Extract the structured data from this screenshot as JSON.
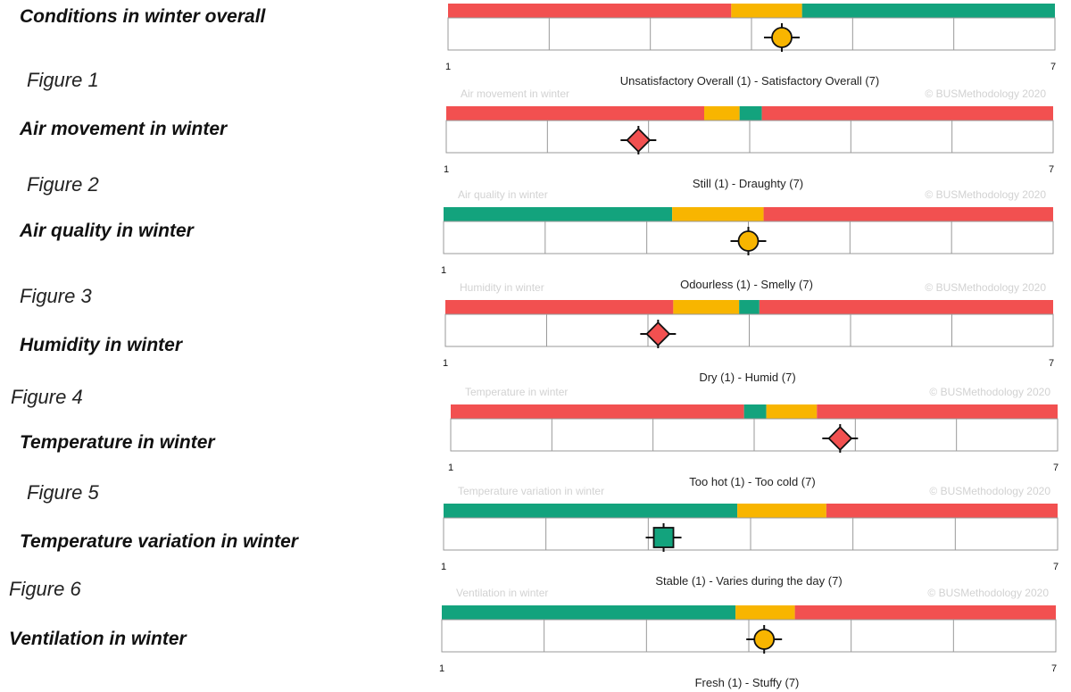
{
  "colors": {
    "red": "#F25050",
    "amber": "#F8B500",
    "green": "#13A37D",
    "frame": "#999999"
  },
  "figures": [
    {
      "label": "Figure 1"
    },
    {
      "label": "Figure 2"
    },
    {
      "label": "Figure 3"
    },
    {
      "label": "Figure 4"
    },
    {
      "label": "Figure 5"
    },
    {
      "label": "Figure 6"
    }
  ],
  "chart_data": [
    {
      "type": "bar",
      "row_title": "Conditions in winter overall",
      "header_left": "",
      "header_right": "",
      "axis_caption": "Unsatisfactory Overall (1) - Satisfactory Overall (7)",
      "xlim": [
        1,
        7
      ],
      "tick_labels": [
        "1",
        "7"
      ],
      "bands": [
        {
          "from": 1,
          "to": 3.8,
          "color": "red"
        },
        {
          "from": 3.8,
          "to": 4.5,
          "color": "amber"
        },
        {
          "from": 4.5,
          "to": 7,
          "color": "green"
        }
      ],
      "marker": {
        "value": 4.3,
        "shape": "circle",
        "color": "amber"
      }
    },
    {
      "type": "bar",
      "row_title": "Air movement in winter",
      "header_left": "Air movement in winter",
      "header_right": "© BUSMethodology 2020",
      "axis_caption": "Still (1) - Draughty (7)",
      "xlim": [
        1,
        7
      ],
      "tick_labels": [
        "1",
        "7"
      ],
      "bands": [
        {
          "from": 1,
          "to": 3.55,
          "color": "red"
        },
        {
          "from": 3.55,
          "to": 3.9,
          "color": "amber"
        },
        {
          "from": 3.9,
          "to": 4.12,
          "color": "green"
        },
        {
          "from": 4.12,
          "to": 7,
          "color": "red"
        }
      ],
      "marker": {
        "value": 2.9,
        "shape": "diamond",
        "color": "red"
      }
    },
    {
      "type": "bar",
      "row_title": "Air quality in winter",
      "header_left": "Air quality in winter",
      "header_right": "© BUSMethodology 2020",
      "axis_caption": "Odourless (1) - Smelly (7)",
      "xlim": [
        1,
        7
      ],
      "tick_labels": [
        "1",
        ""
      ],
      "bands": [
        {
          "from": 1,
          "to": 3.25,
          "color": "green"
        },
        {
          "from": 3.25,
          "to": 4.15,
          "color": "amber"
        },
        {
          "from": 4.15,
          "to": 7,
          "color": "red"
        }
      ],
      "marker": {
        "value": 4.0,
        "shape": "circle",
        "color": "amber"
      }
    },
    {
      "type": "bar",
      "row_title": "Humidity in winter",
      "header_left": "Humidity in winter",
      "header_right": "© BUSMethodology 2020",
      "axis_caption": "Dry (1) - Humid (7)",
      "xlim": [
        1,
        7
      ],
      "tick_labels": [
        "1",
        "7"
      ],
      "bands": [
        {
          "from": 1,
          "to": 3.25,
          "color": "red"
        },
        {
          "from": 3.25,
          "to": 3.9,
          "color": "amber"
        },
        {
          "from": 3.9,
          "to": 4.1,
          "color": "green"
        },
        {
          "from": 4.1,
          "to": 7,
          "color": "red"
        }
      ],
      "marker": {
        "value": 3.1,
        "shape": "diamond",
        "color": "red"
      }
    },
    {
      "type": "bar",
      "row_title": "Temperature in winter",
      "header_left": "Temperature in winter",
      "header_right": "© BUSMethodology 2020",
      "axis_caption": "Too hot (1) - Too cold (7)",
      "xlim": [
        1,
        7
      ],
      "tick_labels": [
        "1",
        "7"
      ],
      "bands": [
        {
          "from": 1,
          "to": 3.9,
          "color": "red"
        },
        {
          "from": 3.9,
          "to": 4.12,
          "color": "green"
        },
        {
          "from": 4.12,
          "to": 4.62,
          "color": "amber"
        },
        {
          "from": 4.62,
          "to": 7,
          "color": "red"
        }
      ],
      "marker": {
        "value": 4.85,
        "shape": "diamond",
        "color": "red"
      }
    },
    {
      "type": "bar",
      "row_title": "Temperature variation in winter",
      "header_left": "Temperature variation in winter",
      "header_right": "© BUSMethodology 2020",
      "axis_caption": "Stable (1) - Varies during the day (7)",
      "xlim": [
        1,
        7
      ],
      "tick_labels": [
        "1",
        "7"
      ],
      "bands": [
        {
          "from": 1,
          "to": 3.87,
          "color": "green"
        },
        {
          "from": 3.87,
          "to": 4.74,
          "color": "amber"
        },
        {
          "from": 4.74,
          "to": 7,
          "color": "red"
        }
      ],
      "marker": {
        "value": 3.15,
        "shape": "square",
        "color": "green"
      }
    },
    {
      "type": "bar",
      "row_title": "Ventilation in winter",
      "header_left": "Ventilation in winter",
      "header_right": "© BUSMethodology 2020",
      "axis_caption": "Fresh (1) - Stuffy (7)",
      "xlim": [
        1,
        7
      ],
      "tick_labels": [
        "1",
        "7"
      ],
      "bands": [
        {
          "from": 1,
          "to": 3.87,
          "color": "green"
        },
        {
          "from": 3.87,
          "to": 4.45,
          "color": "amber"
        },
        {
          "from": 4.45,
          "to": 7,
          "color": "red"
        }
      ],
      "marker": {
        "value": 4.15,
        "shape": "circle",
        "color": "amber"
      }
    }
  ]
}
